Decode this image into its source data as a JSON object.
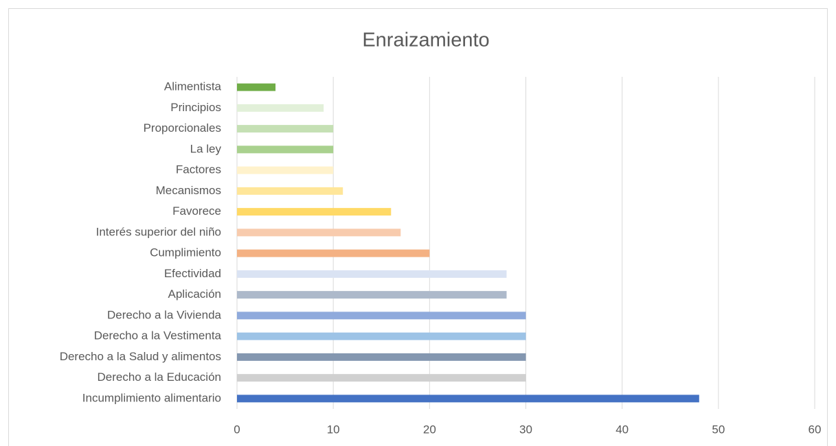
{
  "chart_data": {
    "type": "barh",
    "title": "Enraizamiento",
    "categories": [
      "Incumplimiento alimentario",
      "Derecho a la Educación",
      "Derecho a la Salud y alimentos",
      "Derecho a la Vestimenta",
      "Derecho a la Vivienda",
      "Aplicación",
      "Efectividad",
      "Cumplimiento",
      "Interés superior del niño",
      "Favorece",
      "Mecanismos",
      "Factores",
      "La ley",
      "Proporcionales",
      "Principios",
      "Alimentista"
    ],
    "values": [
      48,
      30,
      30,
      30,
      30,
      28,
      28,
      20,
      17,
      16,
      11,
      10,
      10,
      10,
      9,
      4
    ],
    "colors": [
      "#4472c4",
      "#d0d0d0",
      "#8497b0",
      "#9dc3e6",
      "#8faadc",
      "#adb9ca",
      "#dae3f3",
      "#f4b183",
      "#f8cbad",
      "#ffd966",
      "#ffe699",
      "#fff2cc",
      "#a9d18e",
      "#c5e0b4",
      "#e2f0d9",
      "#70ad47"
    ],
    "xlim": [
      0,
      60
    ],
    "xticks": [
      0,
      10,
      20,
      30,
      40,
      50,
      60
    ],
    "grid": true
  }
}
